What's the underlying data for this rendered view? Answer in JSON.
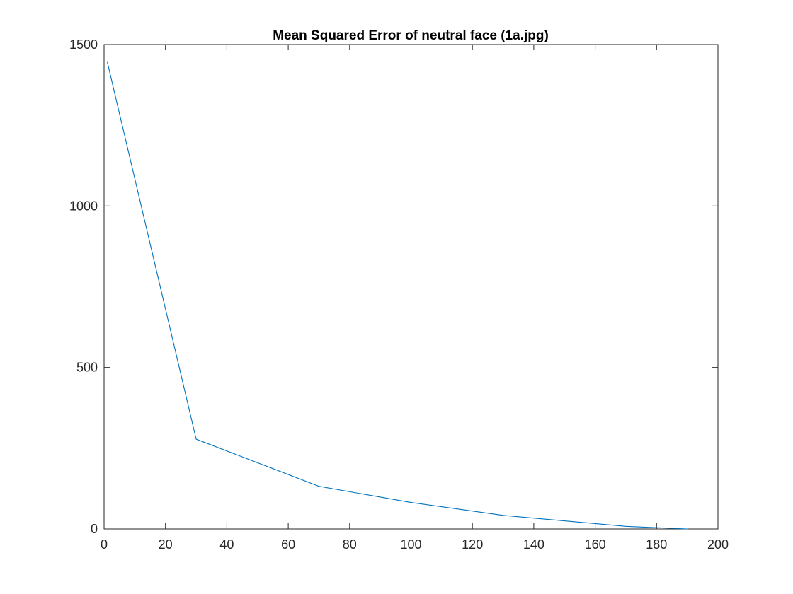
{
  "chart_data": {
    "type": "line",
    "title": "Mean Squared Error of neutral face (1a.jpg)",
    "xlabel": "",
    "ylabel": "",
    "xlim": [
      0,
      200
    ],
    "ylim": [
      0,
      1500
    ],
    "x_ticks": [
      0,
      20,
      40,
      60,
      80,
      100,
      120,
      140,
      160,
      180,
      200
    ],
    "y_ticks": [
      0,
      500,
      1000,
      1500
    ],
    "grid": false,
    "series": [
      {
        "color": "#0072BD",
        "x": [
          1,
          30,
          70,
          100,
          130,
          170,
          190
        ],
        "y": [
          1448,
          278,
          132,
          82,
          42,
          8,
          0
        ]
      }
    ]
  }
}
